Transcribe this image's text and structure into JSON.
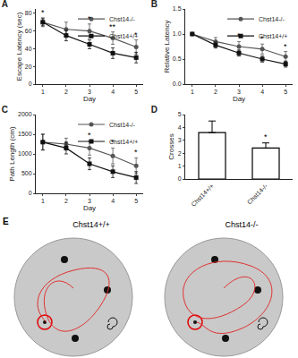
{
  "chart_data": [
    {
      "type": "line",
      "title": "A",
      "x_label": "Day",
      "y_label": "Escape Latency (sec)",
      "x": [
        1,
        2,
        3,
        4,
        5
      ],
      "xlim": [
        0.7,
        5.3
      ],
      "xticks": [
        1,
        2,
        3,
        4,
        5
      ],
      "ylim": [
        0,
        85
      ],
      "yticks": [
        0,
        20,
        40,
        60,
        80
      ],
      "legend": "top right",
      "series": [
        {
          "name": "Chst14-/-",
          "color": "#555555",
          "marker": "circle",
          "line_style": "solid",
          "values": [
            70,
            62,
            60,
            52,
            42
          ],
          "error": [
            5,
            8,
            8,
            7,
            8
          ]
        },
        {
          "name": "Chst14+/+",
          "color": "#111111",
          "marker": "square",
          "line_style": "solid",
          "values": [
            70,
            55,
            45,
            35,
            30
          ],
          "error": [
            4,
            6,
            5,
            6,
            6
          ]
        }
      ],
      "annotations": [
        {
          "x": 1,
          "text": "*"
        },
        {
          "x": 3,
          "text": "*"
        },
        {
          "x": 4,
          "text": "**"
        },
        {
          "x": 5,
          "text": "*"
        }
      ]
    },
    {
      "type": "line",
      "title": "B",
      "x_label": "Day",
      "y_label": "Relative Latency",
      "x": [
        1,
        2,
        3,
        4,
        5
      ],
      "xlim": [
        0.7,
        5.3
      ],
      "xticks": [
        1,
        2,
        3,
        4,
        5
      ],
      "ylim": [
        0,
        1.5
      ],
      "yticks": [
        {
          "value": 0,
          "label": "0.0"
        },
        0.5,
        {
          "value": 1,
          "label": "1.0"
        },
        1.5
      ],
      "legend": "top right",
      "series": [
        {
          "name": "Chst14-/-",
          "color": "#555555",
          "marker": "circle",
          "line_style": "solid",
          "values": [
            1.0,
            0.85,
            0.75,
            0.7,
            0.55
          ],
          "error": [
            0.02,
            0.08,
            0.1,
            0.1,
            0.1
          ]
        },
        {
          "name": "Chst14+/+",
          "color": "#111111",
          "marker": "square",
          "line_style": "solid",
          "values": [
            1.0,
            0.78,
            0.62,
            0.5,
            0.4
          ],
          "error": [
            0.02,
            0.06,
            0.06,
            0.06,
            0.06
          ]
        }
      ],
      "annotations": [
        {
          "x": 3,
          "text": "*"
        },
        {
          "x": 4,
          "text": "*"
        },
        {
          "x": 5,
          "text": "*"
        }
      ]
    },
    {
      "type": "line",
      "title": "C",
      "x_label": "Day",
      "y_label": "Path Length (cm)",
      "x": [
        1,
        2,
        3,
        4,
        5
      ],
      "xlim": [
        0.7,
        5.3
      ],
      "xticks": [
        1,
        2,
        3,
        4,
        5
      ],
      "ylim": [
        0,
        2000
      ],
      "yticks": [
        0,
        500,
        1000,
        1500,
        2000
      ],
      "legend": "top right",
      "series": [
        {
          "name": "Chst14-/-",
          "color": "#555555",
          "marker": "circle",
          "line_style": "solid",
          "values": [
            1300,
            1250,
            1150,
            950,
            700
          ],
          "error": [
            200,
            150,
            180,
            200,
            200
          ]
        },
        {
          "name": "Chst14+/+",
          "color": "#111111",
          "marker": "square",
          "line_style": "solid",
          "values": [
            1300,
            1150,
            750,
            550,
            400
          ],
          "error": [
            200,
            150,
            150,
            150,
            150
          ]
        }
      ],
      "annotations": [
        {
          "x": 3,
          "text": "*"
        },
        {
          "x": 4,
          "text": "*"
        },
        {
          "x": 5,
          "text": "*"
        }
      ]
    },
    {
      "type": "bar",
      "title": "D",
      "y_label": "Crosses",
      "categories": [
        "Chst14+/+",
        "Chst14-/-"
      ],
      "values": [
        3.6,
        2.4
      ],
      "error": [
        0.9,
        0.4
      ],
      "color": "#ffffff",
      "ylim": [
        0,
        5
      ],
      "yticks": [
        0,
        1,
        2,
        3,
        4,
        5
      ],
      "annotations": [
        {
          "x": 1,
          "text": "*"
        }
      ]
    }
  ],
  "image_panel": {
    "title": "E",
    "captions": [
      "Chst14+/+",
      "Chst14-/-"
    ]
  }
}
